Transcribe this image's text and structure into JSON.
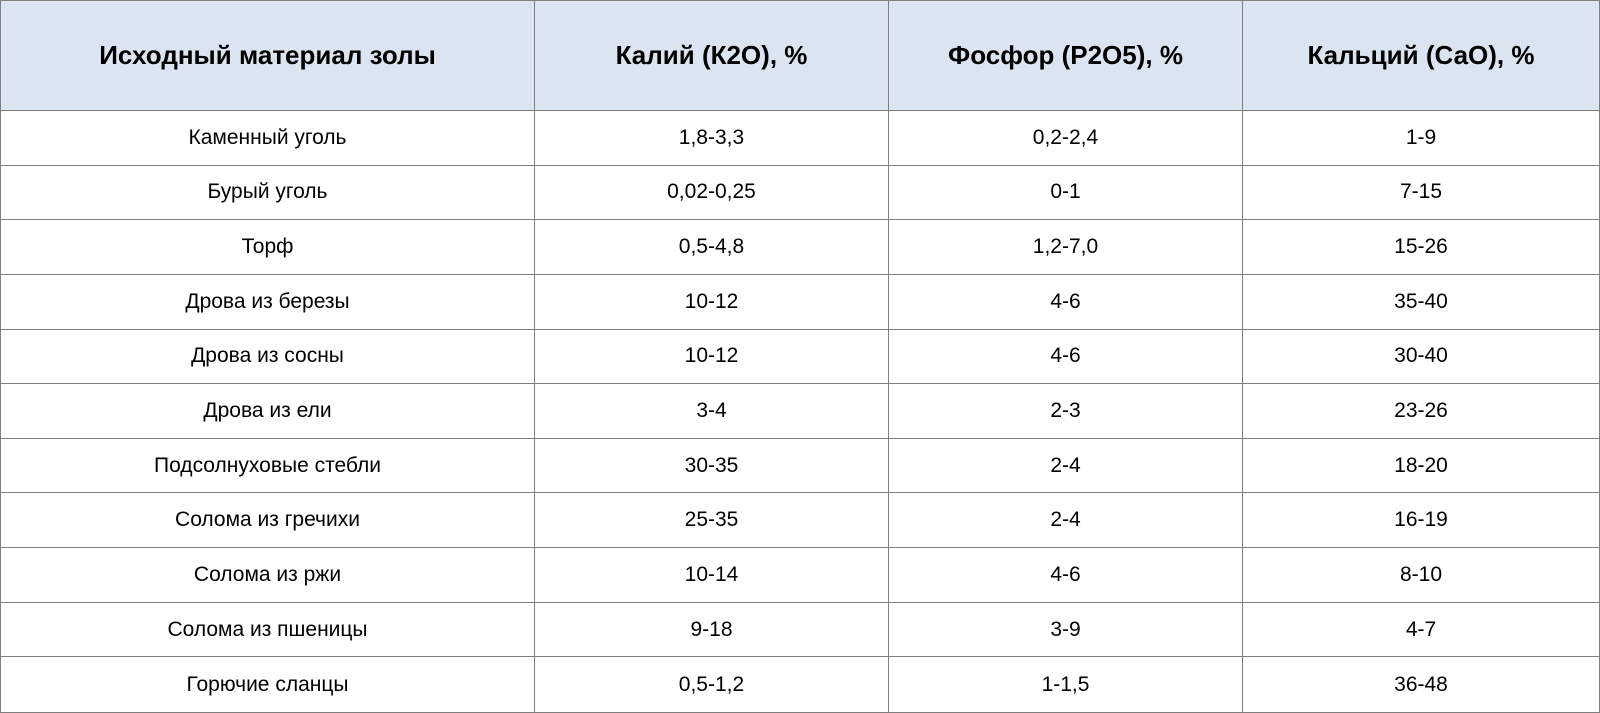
{
  "table": {
    "headers": [
      "Исходный материал золы",
      "Калий (К2О), %",
      "Фосфор (Р2О5), %",
      "Кальций (СаО), %"
    ],
    "rows": [
      [
        "Каменный уголь",
        "1,8-3,3",
        "0,2-2,4",
        "1-9"
      ],
      [
        "Бурый уголь",
        "0,02-0,25",
        "0-1",
        "7-15"
      ],
      [
        "Торф",
        "0,5-4,8",
        "1,2-7,0",
        "15-26"
      ],
      [
        "Дрова из березы",
        "10-12",
        "4-6",
        "35-40"
      ],
      [
        "Дрова из сосны",
        "10-12",
        "4-6",
        "30-40"
      ],
      [
        "Дрова из ели",
        "3-4",
        "2-3",
        "23-26"
      ],
      [
        "Подсолнуховые стебли",
        "30-35",
        "2-4",
        "18-20"
      ],
      [
        "Солома из гречихи",
        "25-35",
        "2-4",
        "16-19"
      ],
      [
        "Солома из ржи",
        "10-14",
        "4-6",
        "8-10"
      ],
      [
        "Солома из пшеницы",
        "9-18",
        "3-9",
        "4-7"
      ],
      [
        "Горючие сланцы",
        "0,5-1,2",
        "1-1,5",
        "36-48"
      ]
    ]
  },
  "colors": {
    "header_background": "#dbe5f1",
    "grid_line": "#7f7f7f",
    "text": "#000000"
  }
}
